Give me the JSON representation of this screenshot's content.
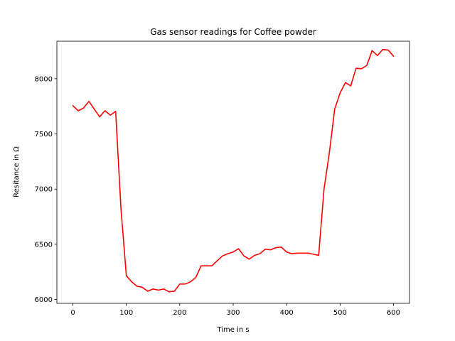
{
  "chart_data": {
    "type": "line",
    "title": "Gas sensor readings for Coffee powder",
    "xlabel": "Time in s",
    "ylabel": "Resitance in Ω",
    "xlim": [
      -30,
      630
    ],
    "ylim": [
      5965,
      8340
    ],
    "xticks": [
      0,
      100,
      200,
      300,
      400,
      500,
      600
    ],
    "yticks": [
      6000,
      6500,
      7000,
      7500,
      8000
    ],
    "grid": false,
    "series": [
      {
        "color": "#ff0000",
        "x": [
          0,
          10,
          20,
          30,
          40,
          50,
          60,
          70,
          80,
          90,
          100,
          110,
          120,
          130,
          140,
          150,
          160,
          170,
          180,
          190,
          200,
          210,
          220,
          230,
          240,
          250,
          260,
          270,
          280,
          290,
          300,
          310,
          320,
          330,
          340,
          350,
          360,
          370,
          380,
          390,
          400,
          410,
          420,
          430,
          440,
          450,
          460,
          470,
          480,
          490,
          500,
          510,
          520,
          530,
          540,
          550,
          560,
          570,
          580,
          590,
          600
        ],
        "values": [
          7755,
          7710,
          7735,
          7795,
          7725,
          7655,
          7710,
          7670,
          7705,
          6820,
          6215,
          6160,
          6120,
          6110,
          6075,
          6095,
          6085,
          6095,
          6070,
          6075,
          6140,
          6140,
          6160,
          6200,
          6305,
          6305,
          6305,
          6350,
          6395,
          6415,
          6430,
          6460,
          6395,
          6365,
          6400,
          6415,
          6455,
          6450,
          6470,
          6475,
          6430,
          6415,
          6420,
          6420,
          6420,
          6410,
          6400,
          7000,
          7330,
          7725,
          7870,
          7965,
          7935,
          8095,
          8090,
          8120,
          8255,
          8210,
          8265,
          8260,
          8205
        ]
      }
    ]
  }
}
